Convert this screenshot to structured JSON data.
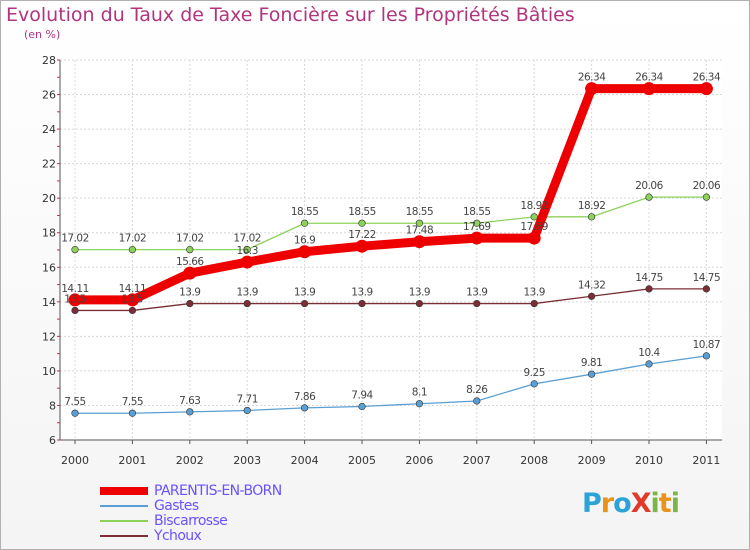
{
  "header": {
    "title": "Evolution du Taux de Taxe Foncière sur les Propriétés Bâties",
    "subtitle": "(en %)"
  },
  "logo": {
    "text": "ProXiti",
    "letters": [
      {
        "ch": "P",
        "color": "#2aa3d8"
      },
      {
        "ch": "r",
        "color": "#e8941c"
      },
      {
        "ch": "o",
        "color": "#2aa3d8"
      },
      {
        "ch": "X",
        "color": "#e23a2a"
      },
      {
        "ch": "i",
        "color": "#7ab648"
      },
      {
        "ch": "t",
        "color": "#e8941c"
      },
      {
        "ch": "i",
        "color": "#7ab648"
      }
    ]
  },
  "chart_data": {
    "type": "line",
    "title": "Evolution du Taux de Taxe Foncière sur les Propriétés Bâties",
    "ylabel": "(en %)",
    "xlabel": "",
    "x": [
      "2000",
      "2001",
      "2002",
      "2003",
      "2004",
      "2005",
      "2006",
      "2007",
      "2008",
      "2009",
      "2010",
      "2011"
    ],
    "ylim": [
      6,
      28
    ],
    "yticks": [
      6,
      8,
      10,
      12,
      14,
      16,
      18,
      20,
      22,
      24,
      26,
      28
    ],
    "grid": true,
    "legend_position": "bottom-left",
    "series": [
      {
        "name": "PARENTIS-EN-BORN",
        "color": "#ee0000",
        "emphasis": true,
        "values": [
          14.11,
          14.11,
          15.66,
          16.3,
          16.9,
          17.22,
          17.48,
          17.69,
          17.69,
          26.34,
          26.34,
          26.34
        ],
        "labels": [
          "14.11",
          "14.11",
          "15.66",
          "16.3",
          "16.9",
          "17.22",
          "17.48",
          "17.69",
          "17.69",
          "26.34",
          "26.34",
          "26.34"
        ]
      },
      {
        "name": "Gastes",
        "color": "#5a9fd4",
        "values": [
          7.55,
          7.55,
          7.63,
          7.71,
          7.86,
          7.94,
          8.1,
          8.26,
          9.25,
          9.81,
          10.4,
          10.87
        ],
        "labels": [
          "7.55",
          "7.55",
          "7.63",
          "7.71",
          "7.86",
          "7.94",
          "8.1",
          "8.26",
          "9.25",
          "9.81",
          "10.4",
          "10.87"
        ]
      },
      {
        "name": "Biscarrosse",
        "color": "#8cd25a",
        "values": [
          17.02,
          17.02,
          17.02,
          17.02,
          18.55,
          18.55,
          18.55,
          18.55,
          18.92,
          18.92,
          20.06,
          20.06
        ],
        "labels": [
          "17.02",
          "17.02",
          "17.02",
          "17.02",
          "18.55",
          "18.55",
          "18.55",
          "18.55",
          "18.92",
          "18.92",
          "20.06",
          "20.06"
        ]
      },
      {
        "name": "Ychoux",
        "color": "#7a2e36",
        "values": [
          13.5,
          13.5,
          13.9,
          13.9,
          13.9,
          13.9,
          13.9,
          13.9,
          13.9,
          14.32,
          14.75,
          14.75
        ],
        "labels": [
          "13.5",
          "13.5",
          "13.9",
          "13.9",
          "13.9",
          "13.9",
          "13.9",
          "13.9",
          "13.9",
          "14.32",
          "14.75",
          "14.75"
        ]
      }
    ]
  }
}
